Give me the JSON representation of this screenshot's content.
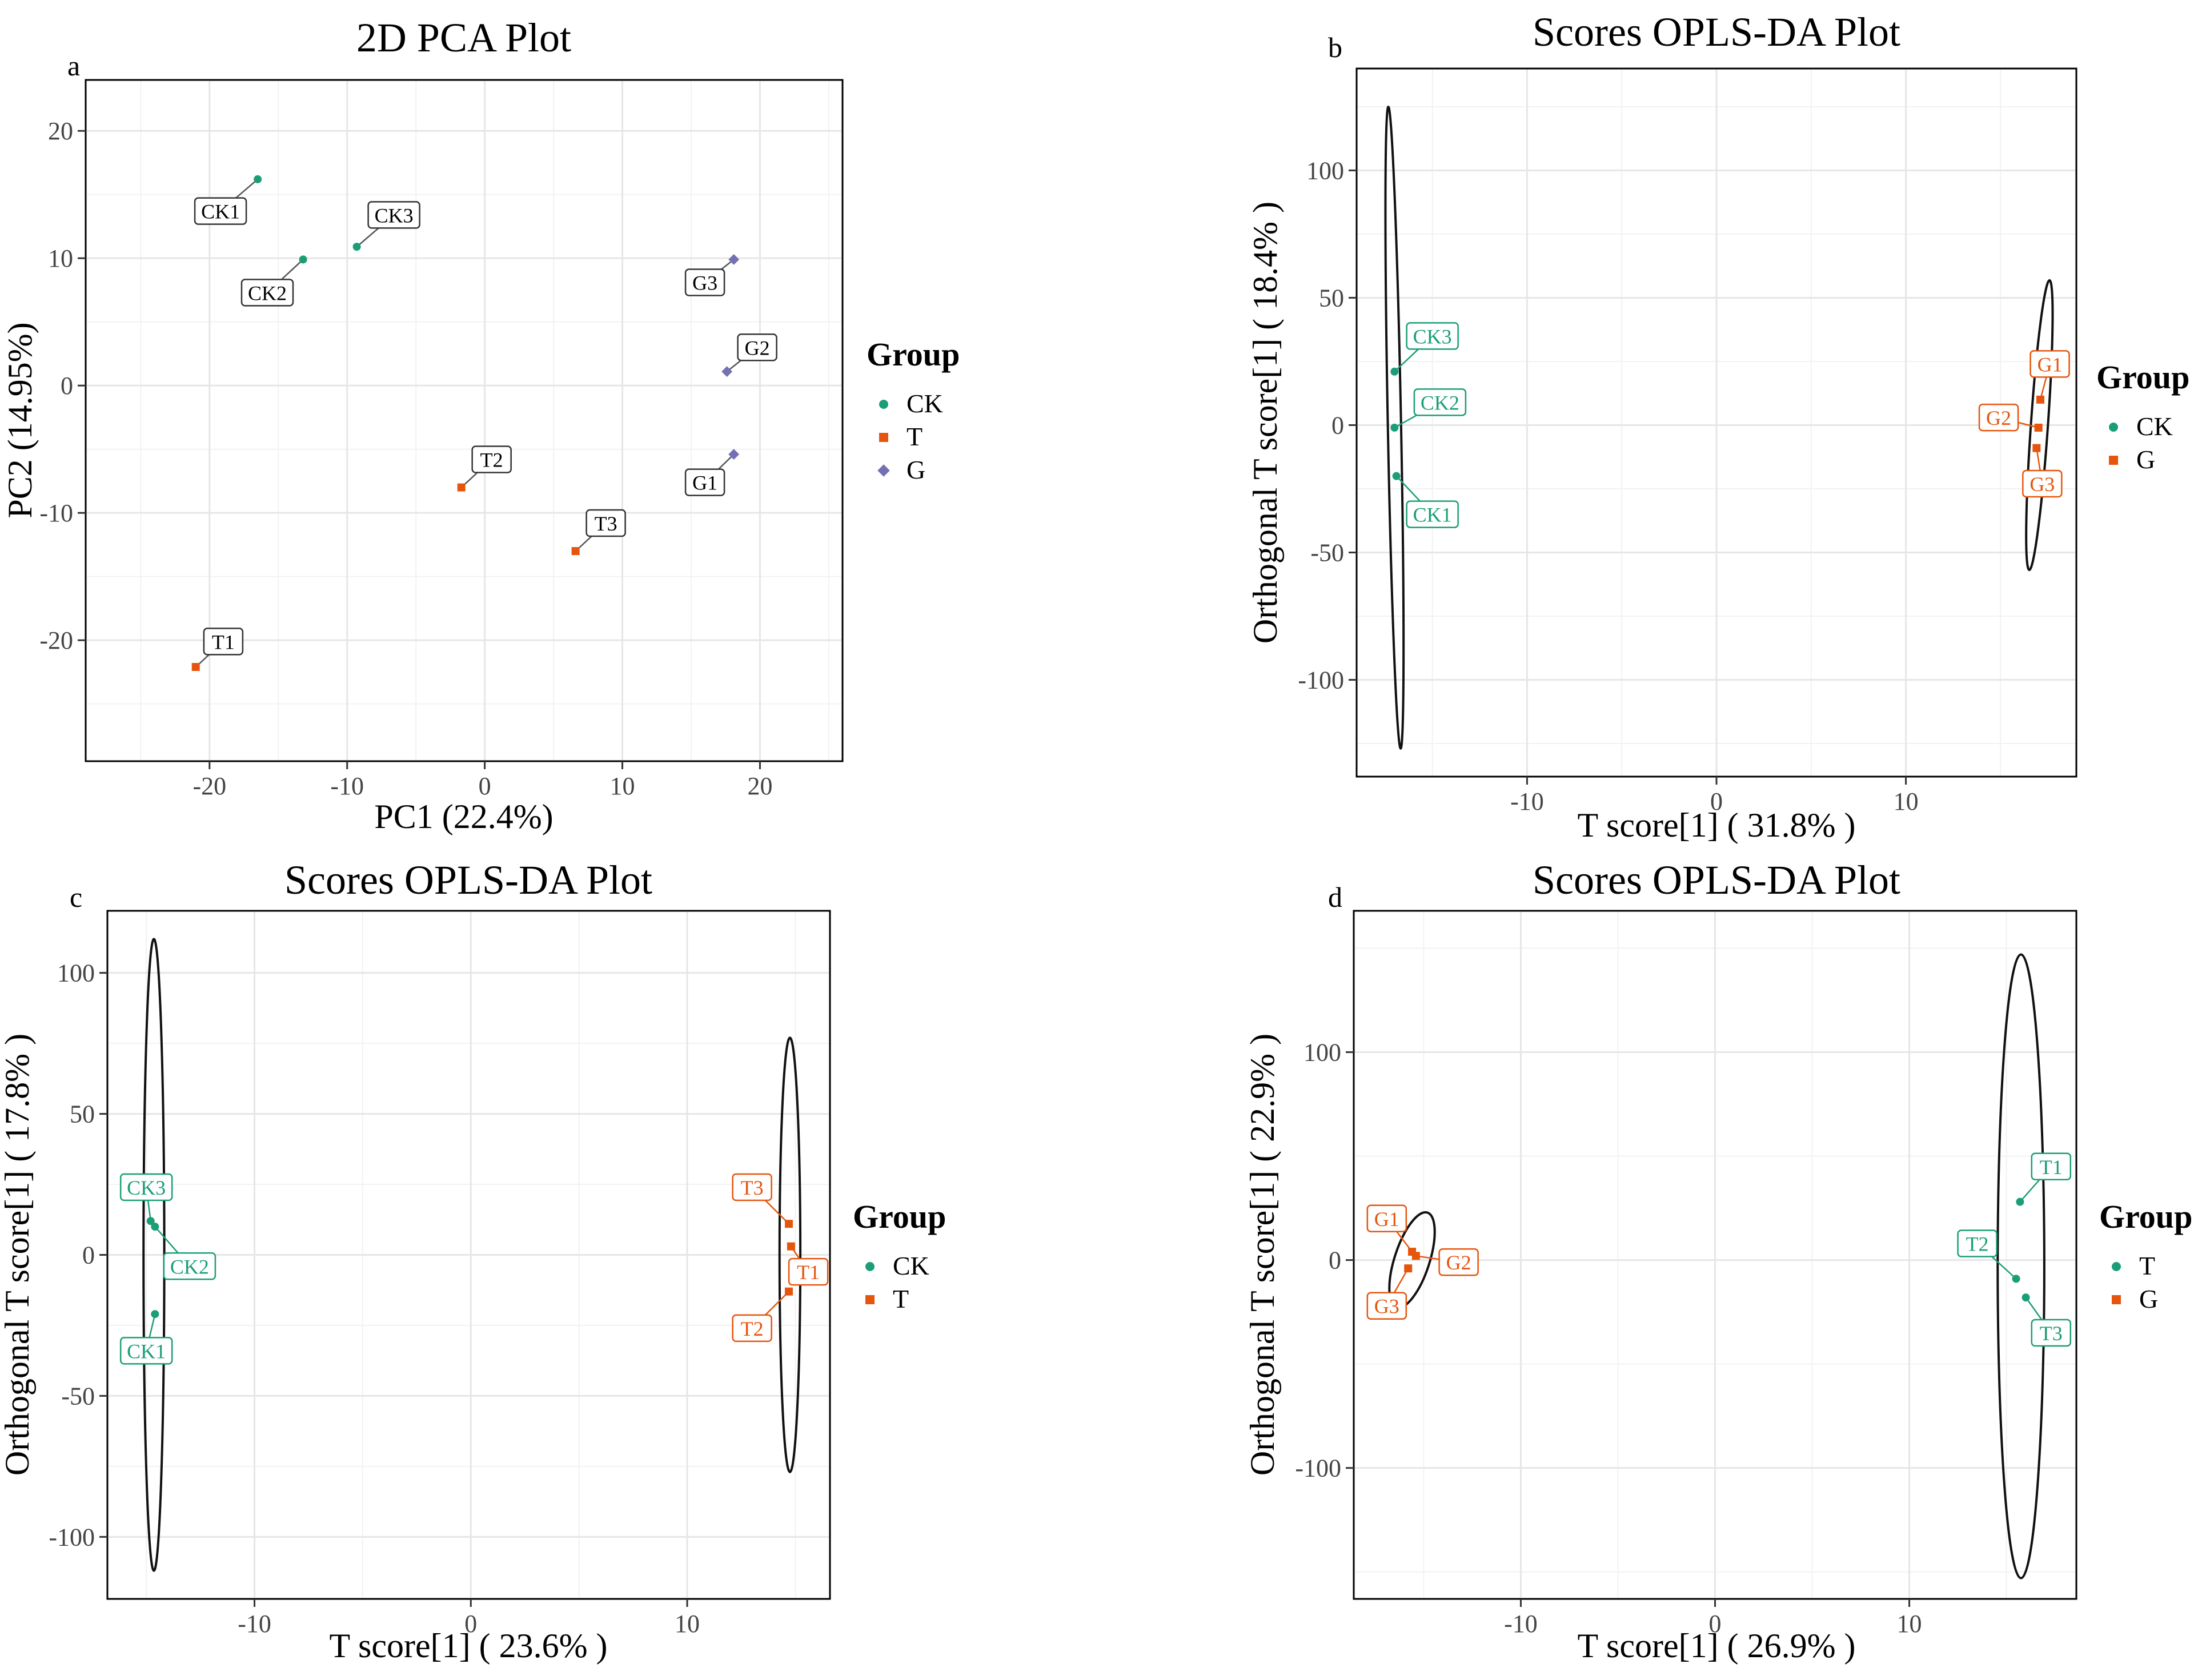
{
  "colors": {
    "CK": "#1b9e77",
    "T": "#e6550d",
    "G": "#7570b3"
  },
  "chart_data": [
    {
      "type": "scatter",
      "tag": "a",
      "title": "2D PCA Plot",
      "xlabel": "PC1 (22.4%)",
      "ylabel": "PC2 (14.95%)",
      "xlim": [
        -29,
        26
      ],
      "ylim": [
        -29.5,
        24
      ],
      "xticks": [
        -20,
        -10,
        0,
        10,
        20
      ],
      "yticks": [
        -20,
        -10,
        0,
        10,
        20
      ],
      "grid": true,
      "label_style": "boxed",
      "legend": {
        "title": "Group",
        "position": "right",
        "entries": [
          {
            "name": "CK",
            "color": "#1b9e77",
            "shape": "circle"
          },
          {
            "name": "T",
            "color": "#e6550d",
            "shape": "square"
          },
          {
            "name": "G",
            "color": "#7570b3",
            "shape": "diamond"
          }
        ]
      },
      "series": [
        {
          "name": "CK",
          "color": "#1b9e77",
          "shape": "circle",
          "points": [
            {
              "label": "CK1",
              "x": -16.5,
              "y": 16.2,
              "lx": -19.2,
              "ly": 13.7
            },
            {
              "label": "CK2",
              "x": -13.2,
              "y": 9.9,
              "lx": -15.8,
              "ly": 7.3
            },
            {
              "label": "CK3",
              "x": -9.3,
              "y": 10.9,
              "lx": -6.6,
              "ly": 13.4
            }
          ]
        },
        {
          "name": "T",
          "color": "#e6550d",
          "shape": "square",
          "points": [
            {
              "label": "T1",
              "x": -21.0,
              "y": -22.1,
              "lx": -19.0,
              "ly": -20.1
            },
            {
              "label": "T2",
              "x": -1.7,
              "y": -8.0,
              "lx": 0.5,
              "ly": -5.8
            },
            {
              "label": "T3",
              "x": 6.6,
              "y": -13.0,
              "lx": 8.8,
              "ly": -10.8
            }
          ]
        },
        {
          "name": "G",
          "color": "#7570b3",
          "shape": "diamond",
          "points": [
            {
              "label": "G1",
              "x": 18.1,
              "y": -5.4,
              "lx": 16.0,
              "ly": -7.6
            },
            {
              "label": "G2",
              "x": 17.6,
              "y": 1.1,
              "lx": 19.8,
              "ly": 3.0
            },
            {
              "label": "G3",
              "x": 18.1,
              "y": 9.9,
              "lx": 16.0,
              "ly": 8.1
            }
          ]
        }
      ],
      "ellipses": []
    },
    {
      "type": "scatter",
      "tag": "b",
      "title": "Scores OPLS-DA Plot",
      "xlabel": "T score[1] ( 31.8% )",
      "ylabel": "Orthogonal T score[1] ( 18.4% )",
      "xlim": [
        -19,
        19
      ],
      "ylim": [
        -138,
        140
      ],
      "xticks": [
        -10,
        0,
        10
      ],
      "yticks": [
        -100,
        -50,
        0,
        50,
        100
      ],
      "grid": true,
      "label_style": "colored",
      "legend": {
        "title": "Group",
        "position": "right",
        "entries": [
          {
            "name": "CK",
            "color": "#1b9e77",
            "shape": "circle"
          },
          {
            "name": "G",
            "color": "#e6550d",
            "shape": "square"
          }
        ]
      },
      "series": [
        {
          "name": "CK",
          "color": "#1b9e77",
          "shape": "circle",
          "points": [
            {
              "label": "CK3",
              "x": -17.0,
              "y": 21,
              "lx": -15.0,
              "ly": 35
            },
            {
              "label": "CK2",
              "x": -17.0,
              "y": -1,
              "lx": -14.6,
              "ly": 9
            },
            {
              "label": "CK1",
              "x": -16.9,
              "y": -20,
              "lx": -15.0,
              "ly": -35
            }
          ]
        },
        {
          "name": "G",
          "color": "#e6550d",
          "shape": "square",
          "points": [
            {
              "label": "G1",
              "x": 17.1,
              "y": 10,
              "lx": 17.6,
              "ly": 24
            },
            {
              "label": "G2",
              "x": 17.0,
              "y": -1,
              "lx": 14.9,
              "ly": 3
            },
            {
              "label": "G3",
              "x": 16.9,
              "y": -9,
              "lx": 17.2,
              "ly": -23
            }
          ]
        }
      ],
      "ellipses": [
        {
          "group": "CK",
          "cx": -17.0,
          "cy": -1,
          "rx": 0.35,
          "ry": 126,
          "rotate": -1.1
        },
        {
          "group": "G",
          "cx": 17.05,
          "cy": 0,
          "rx": 0.45,
          "ry": 57,
          "rotate": 4
        }
      ]
    },
    {
      "type": "scatter",
      "tag": "c",
      "title": "Scores OPLS-DA Plot",
      "xlabel": "T score[1] ( 23.6% )",
      "ylabel": "Orthogonal T score[1] ( 17.8% )",
      "xlim": [
        -16.8,
        16.6
      ],
      "ylim": [
        -122,
        122
      ],
      "xticks": [
        -10,
        0,
        10
      ],
      "yticks": [
        -100,
        -50,
        0,
        50,
        100
      ],
      "grid": true,
      "label_style": "colored",
      "legend": {
        "title": "Group",
        "position": "right",
        "entries": [
          {
            "name": "CK",
            "color": "#1b9e77",
            "shape": "circle"
          },
          {
            "name": "T",
            "color": "#e6550d",
            "shape": "square"
          }
        ]
      },
      "series": [
        {
          "name": "CK",
          "color": "#1b9e77",
          "shape": "circle",
          "points": [
            {
              "label": "CK3",
              "x": -14.8,
              "y": 12,
              "lx": -15.0,
              "ly": 24
            },
            {
              "label": "CK2",
              "x": -14.6,
              "y": 10,
              "lx": -13.0,
              "ly": -4
            },
            {
              "label": "CK1",
              "x": -14.6,
              "y": -21,
              "lx": -15.0,
              "ly": -34
            }
          ]
        },
        {
          "name": "T",
          "color": "#e6550d",
          "shape": "square",
          "points": [
            {
              "label": "T3",
              "x": 14.7,
              "y": 11,
              "lx": 13.0,
              "ly": 24
            },
            {
              "label": "T1",
              "x": 14.8,
              "y": 3,
              "lx": 15.6,
              "ly": -6
            },
            {
              "label": "T2",
              "x": 14.7,
              "y": -13,
              "lx": 13.0,
              "ly": -26
            }
          ]
        }
      ],
      "ellipses": [
        {
          "group": "CK",
          "cx": -14.65,
          "cy": 0,
          "rx": 0.48,
          "ry": 112,
          "rotate": 0
        },
        {
          "group": "T",
          "cx": 14.75,
          "cy": 0,
          "rx": 0.48,
          "ry": 77,
          "rotate": 0
        }
      ]
    },
    {
      "type": "scatter",
      "tag": "d",
      "title": "Scores OPLS-DA Plot",
      "xlabel": "T score[1] ( 26.9% )",
      "ylabel": "Orthogonal T score[1] ( 22.9% )",
      "xlim": [
        -18.6,
        18.6
      ],
      "ylim": [
        -163,
        168
      ],
      "xticks": [
        -10,
        0,
        10
      ],
      "yticks": [
        -100,
        0,
        100
      ],
      "grid": true,
      "label_style": "colored",
      "legend": {
        "title": "Group",
        "position": "right",
        "entries": [
          {
            "name": "T",
            "color": "#1b9e77",
            "shape": "circle"
          },
          {
            "name": "G",
            "color": "#e6550d",
            "shape": "square"
          }
        ]
      },
      "series": [
        {
          "name": "T",
          "color": "#1b9e77",
          "shape": "circle",
          "points": [
            {
              "label": "T1",
              "x": 15.7,
              "y": 28,
              "lx": 17.3,
              "ly": 45
            },
            {
              "label": "T2",
              "x": 15.5,
              "y": -9,
              "lx": 13.5,
              "ly": 8
            },
            {
              "label": "T3",
              "x": 16.0,
              "y": -18,
              "lx": 17.3,
              "ly": -35
            }
          ]
        },
        {
          "name": "G",
          "color": "#e6550d",
          "shape": "square",
          "points": [
            {
              "label": "G1",
              "x": -15.6,
              "y": 4,
              "lx": -16.9,
              "ly": 20
            },
            {
              "label": "G2",
              "x": -15.4,
              "y": 2,
              "lx": -13.2,
              "ly": -1
            },
            {
              "label": "G3",
              "x": -15.8,
              "y": -4,
              "lx": -16.9,
              "ly": -22
            }
          ]
        }
      ],
      "ellipses": [
        {
          "group": "G",
          "cx": -15.6,
          "cy": 0,
          "rx": 0.9,
          "ry": 24,
          "rotate": 18
        },
        {
          "group": "T",
          "cx": 15.75,
          "cy": -3,
          "rx": 1.2,
          "ry": 150,
          "rotate": 0
        }
      ]
    }
  ]
}
